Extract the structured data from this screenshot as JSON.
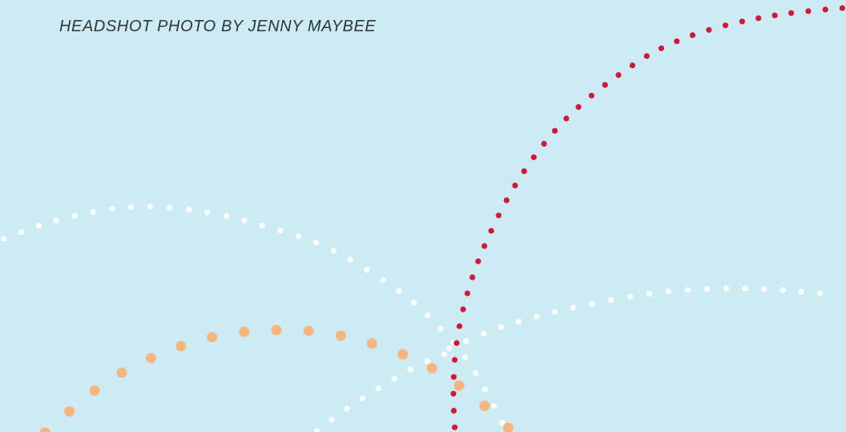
{
  "credit": {
    "text": "HEADSHOT PHOTO BY JENNY MAYBEE"
  },
  "colors": {
    "background": "#cdebf2",
    "text": "#2f3436",
    "red_dots": "#d21838",
    "orange_dots": "#f7b57e",
    "white_dots": "#ffffff"
  }
}
